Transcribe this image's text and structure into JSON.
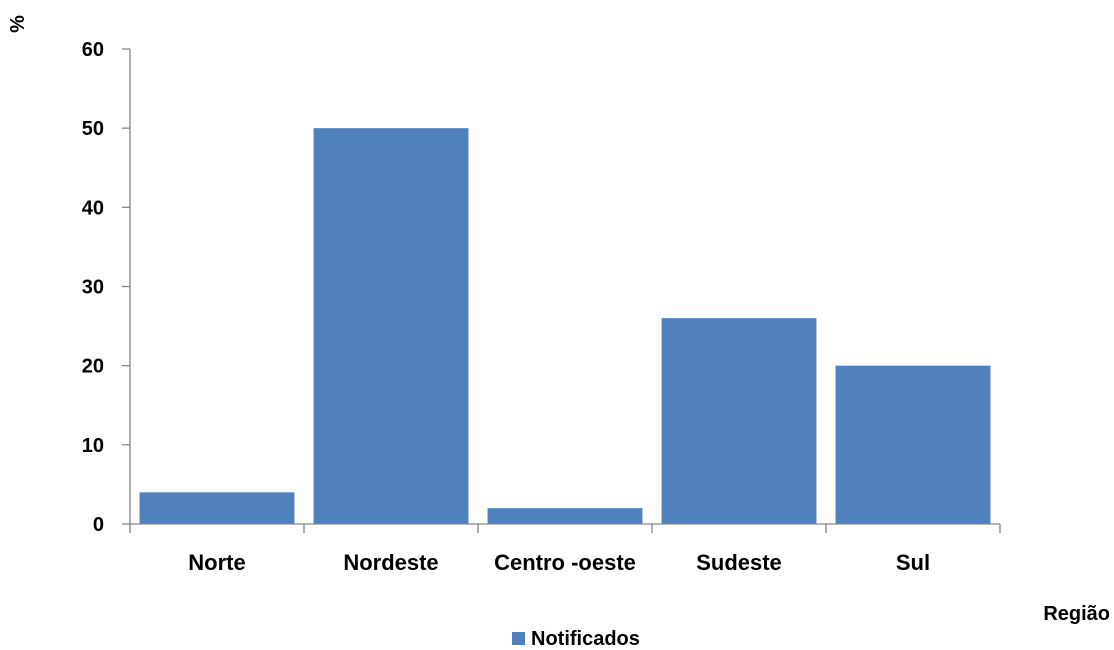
{
  "chart_data": {
    "type": "bar",
    "categories": [
      "Norte",
      "Nordeste",
      "Centro -oeste",
      "Sudeste",
      "Sul"
    ],
    "series": [
      {
        "name": "Notificados",
        "values": [
          4,
          50,
          2,
          26,
          20
        ],
        "color": "#4F81BD"
      }
    ],
    "xlabel": "Região",
    "ylabel": "%",
    "ylim": [
      0,
      60
    ],
    "yticks": [
      0,
      10,
      20,
      30,
      40,
      50,
      60
    ],
    "grid": false,
    "legend_position": "bottom"
  }
}
